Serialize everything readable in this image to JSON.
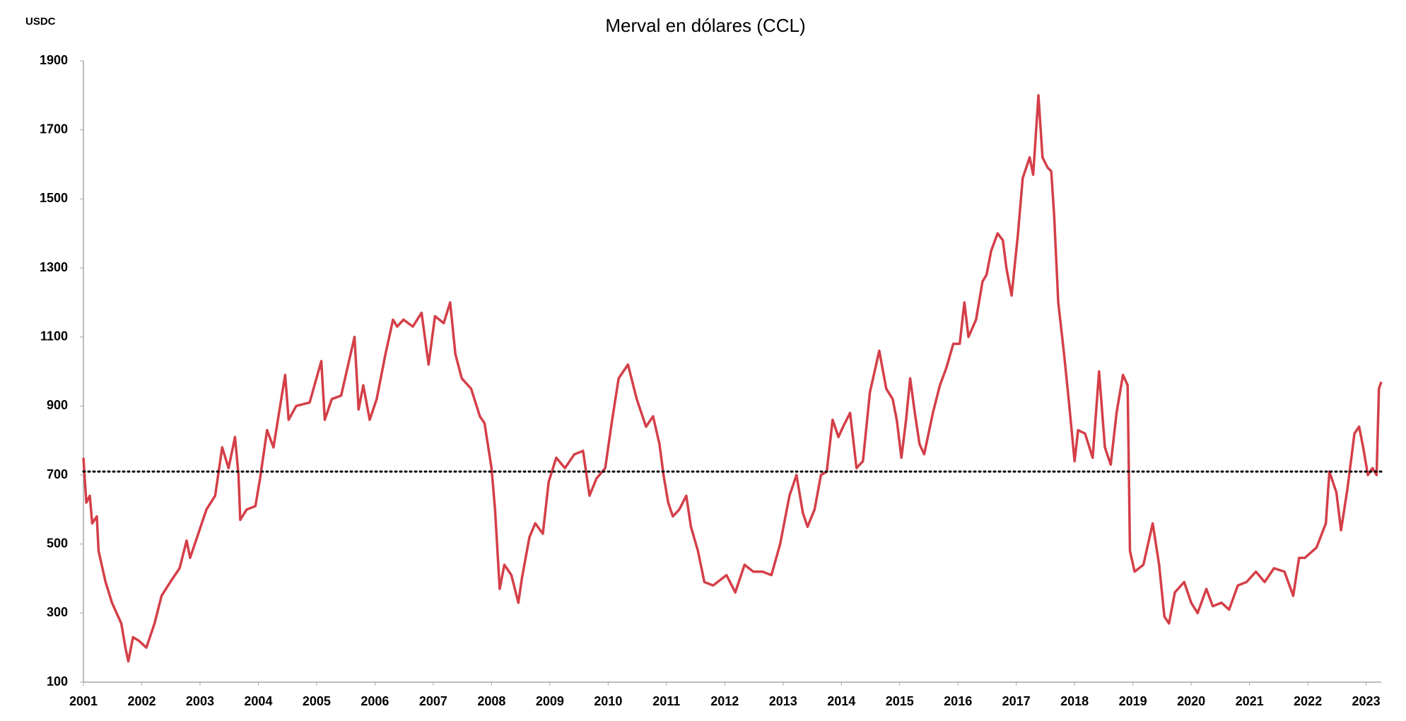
{
  "chart_data": {
    "type": "line",
    "title": "Merval en dólares (CCL)",
    "y_unit": "USDC",
    "color": "#d43f48",
    "x": [
      2001.0,
      2001.05,
      2001.11,
      2001.15,
      2001.23,
      2001.26,
      2001.38,
      2001.49,
      2001.65,
      2001.72,
      2001.77,
      2001.85,
      2001.95,
      2002.08,
      2002.22,
      2002.34,
      2002.49,
      2002.65,
      2002.77,
      2002.83,
      2002.95,
      2003.11,
      2003.26,
      2003.38,
      2003.49,
      2003.6,
      2003.66,
      2003.69,
      2003.8,
      2003.95,
      2004.03,
      2004.15,
      2004.26,
      2004.46,
      2004.52,
      2004.65,
      2004.88,
      2005.08,
      2005.14,
      2005.26,
      2005.42,
      2005.65,
      2005.72,
      2005.8,
      2005.91,
      2006.03,
      2006.18,
      2006.31,
      2006.38,
      2006.49,
      2006.65,
      2006.8,
      2006.92,
      2007.03,
      2007.18,
      2007.29,
      2007.38,
      2007.49,
      2007.65,
      2007.8,
      2007.88,
      2008.0,
      2008.06,
      2008.14,
      2008.22,
      2008.34,
      2008.46,
      2008.52,
      2008.65,
      2008.75,
      2008.88,
      2008.98,
      2009.11,
      2009.26,
      2009.42,
      2009.57,
      2009.68,
      2009.8,
      2009.95,
      2010.06,
      2010.18,
      2010.34,
      2010.49,
      2010.65,
      2010.77,
      2010.88,
      2010.95,
      2011.03,
      2011.11,
      2011.22,
      2011.34,
      2011.42,
      2011.54,
      2011.65,
      2011.8,
      2012.03,
      2012.18,
      2012.34,
      2012.49,
      2012.65,
      2012.8,
      2012.95,
      2013.11,
      2013.23,
      2013.34,
      2013.42,
      2013.54,
      2013.65,
      2013.75,
      2013.85,
      2013.95,
      2014.03,
      2014.15,
      2014.26,
      2014.37,
      2014.49,
      2014.65,
      2014.77,
      2014.88,
      2014.95,
      2015.03,
      2015.11,
      2015.18,
      2015.26,
      2015.34,
      2015.42,
      2015.57,
      2015.69,
      2015.8,
      2015.92,
      2016.03,
      2016.11,
      2016.18,
      2016.31,
      2016.42,
      2016.49,
      2016.57,
      2016.68,
      2016.77,
      2016.83,
      2016.92,
      2017.03,
      2017.11,
      2017.23,
      2017.29,
      2017.38,
      2017.45,
      2017.54,
      2017.6,
      2017.65,
      2017.72,
      2017.82,
      2017.91,
      2018.0,
      2018.06,
      2018.18,
      2018.31,
      2018.42,
      2018.52,
      2018.62,
      2018.72,
      2018.83,
      2018.91,
      2018.95,
      2019.03,
      2019.18,
      2019.34,
      2019.45,
      2019.54,
      2019.62,
      2019.72,
      2019.88,
      2020.0,
      2020.11,
      2020.26,
      2020.37,
      2020.52,
      2020.65,
      2020.8,
      2020.95,
      2021.11,
      2021.26,
      2021.42,
      2021.6,
      2021.75,
      2021.85,
      2021.95,
      2022.15,
      2022.31,
      2022.37,
      2022.49,
      2022.57,
      2022.68,
      2022.8,
      2022.88,
      2022.95,
      2023.03,
      2023.11,
      2023.18,
      2023.22,
      2023.26
    ],
    "values": [
      750,
      620,
      640,
      560,
      580,
      480,
      390,
      330,
      270,
      200,
      160,
      230,
      220,
      200,
      270,
      350,
      390,
      430,
      510,
      460,
      520,
      600,
      640,
      780,
      720,
      810,
      700,
      570,
      600,
      610,
      690,
      830,
      780,
      990,
      860,
      900,
      910,
      1030,
      860,
      920,
      930,
      1100,
      890,
      960,
      860,
      920,
      1050,
      1150,
      1130,
      1150,
      1130,
      1170,
      1020,
      1160,
      1140,
      1200,
      1050,
      980,
      950,
      870,
      850,
      720,
      600,
      370,
      440,
      410,
      330,
      400,
      520,
      560,
      530,
      680,
      750,
      720,
      760,
      770,
      640,
      690,
      720,
      850,
      980,
      1020,
      920,
      840,
      870,
      790,
      700,
      620,
      580,
      600,
      640,
      550,
      480,
      390,
      380,
      410,
      360,
      440,
      420,
      420,
      410,
      500,
      640,
      700,
      590,
      550,
      600,
      700,
      710,
      860,
      810,
      840,
      880,
      720,
      740,
      940,
      1060,
      950,
      920,
      860,
      750,
      860,
      980,
      880,
      790,
      760,
      880,
      960,
      1010,
      1080,
      1080,
      1200,
      1100,
      1150,
      1260,
      1280,
      1350,
      1400,
      1380,
      1300,
      1220,
      1400,
      1560,
      1620,
      1570,
      1800,
      1620,
      1590,
      1580,
      1450,
      1200,
      1050,
      900,
      740,
      830,
      820,
      750,
      1000,
      780,
      730,
      880,
      990,
      960,
      480,
      420,
      440,
      560,
      440,
      290,
      270,
      360,
      390,
      330,
      300,
      370,
      320,
      330,
      310,
      380,
      390,
      420,
      390,
      430,
      420,
      350,
      460,
      460,
      490,
      560,
      710,
      650,
      540,
      660,
      820,
      840,
      780,
      700,
      720,
      700,
      950,
      970
    ],
    "reference_line": 710,
    "xlim": [
      2001,
      2023.26
    ],
    "xticks": [
      2001,
      2002,
      2003,
      2004,
      2005,
      2006,
      2007,
      2008,
      2009,
      2010,
      2011,
      2012,
      2013,
      2014,
      2015,
      2016,
      2017,
      2018,
      2019,
      2020,
      2021,
      2022,
      2023
    ],
    "ylim": [
      100,
      1900
    ],
    "yticks": [
      100,
      300,
      500,
      700,
      900,
      1100,
      1300,
      1500,
      1700,
      1900
    ]
  }
}
